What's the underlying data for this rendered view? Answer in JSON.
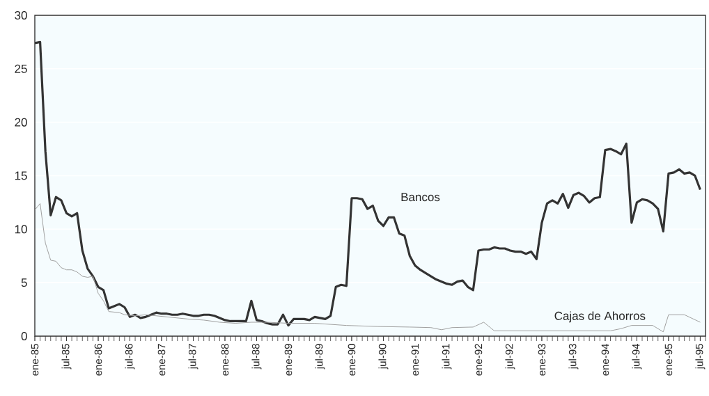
{
  "chart_data": {
    "type": "line",
    "xlim": [
      "1985-01",
      "1995-08"
    ],
    "ylim": [
      0,
      30
    ],
    "yticks": [
      0,
      5,
      10,
      15,
      20,
      25,
      30
    ],
    "xticks": [
      {
        "value": "1985-01",
        "label": "ene-85"
      },
      {
        "value": "1985-07",
        "label": "jul-85"
      },
      {
        "value": "1986-01",
        "label": "ene-86"
      },
      {
        "value": "1986-07",
        "label": "jul-86"
      },
      {
        "value": "1987-01",
        "label": "ene-87"
      },
      {
        "value": "1987-07",
        "label": "jul-87"
      },
      {
        "value": "1988-01",
        "label": "ene-88"
      },
      {
        "value": "1988-07",
        "label": "jul-88"
      },
      {
        "value": "1989-01",
        "label": "ene-89"
      },
      {
        "value": "1989-07",
        "label": "jul-89"
      },
      {
        "value": "1990-01",
        "label": "ene-90"
      },
      {
        "value": "1990-07",
        "label": "jul-90"
      },
      {
        "value": "1991-01",
        "label": "ene-91"
      },
      {
        "value": "1991-07",
        "label": "jul-91"
      },
      {
        "value": "1992-01",
        "label": "ene-92"
      },
      {
        "value": "1992-07",
        "label": "jul-92"
      },
      {
        "value": "1993-01",
        "label": "ene-93"
      },
      {
        "value": "1993-07",
        "label": "jul-93"
      },
      {
        "value": "1994-01",
        "label": "ene-94"
      },
      {
        "value": "1994-07",
        "label": "jul-94"
      },
      {
        "value": "1995-01",
        "label": "ene-95"
      },
      {
        "value": "1995-07",
        "label": "jul-95"
      }
    ],
    "grid": "y",
    "legend": false,
    "marker": "none",
    "series": [
      {
        "name": "Bancos",
        "color": "#333333",
        "x": [
          "1985-01",
          "1985-02",
          "1985-03",
          "1985-04",
          "1985-05",
          "1985-06",
          "1985-07",
          "1985-08",
          "1985-09",
          "1985-10",
          "1985-11",
          "1985-12",
          "1986-01",
          "1986-02",
          "1986-03",
          "1986-04",
          "1986-05",
          "1986-06",
          "1986-07",
          "1986-08",
          "1986-09",
          "1986-10",
          "1986-11",
          "1986-12",
          "1987-01",
          "1987-02",
          "1987-03",
          "1987-04",
          "1987-05",
          "1987-06",
          "1987-07",
          "1987-08",
          "1987-09",
          "1987-10",
          "1987-11",
          "1987-12",
          "1988-01",
          "1988-02",
          "1988-03",
          "1988-04",
          "1988-05",
          "1988-06",
          "1988-07",
          "1988-08",
          "1988-09",
          "1988-10",
          "1988-11",
          "1988-12",
          "1989-01",
          "1989-02",
          "1989-03",
          "1989-04",
          "1989-05",
          "1989-06",
          "1989-07",
          "1989-08",
          "1989-09",
          "1989-10",
          "1989-11",
          "1989-12",
          "1990-01",
          "1990-02",
          "1990-03",
          "1990-04",
          "1990-05",
          "1990-06",
          "1990-07",
          "1990-08",
          "1990-09",
          "1990-10",
          "1990-11",
          "1990-12",
          "1991-01",
          "1991-02",
          "1991-03",
          "1991-04",
          "1991-05",
          "1991-06",
          "1991-07",
          "1991-08",
          "1991-09",
          "1991-10",
          "1991-11",
          "1991-12",
          "1992-01",
          "1992-02",
          "1992-03",
          "1992-04",
          "1992-05",
          "1992-06",
          "1992-07",
          "1992-08",
          "1992-09",
          "1992-10",
          "1992-11",
          "1992-12",
          "1993-01",
          "1993-02",
          "1993-03",
          "1993-04",
          "1993-05",
          "1993-06",
          "1993-07",
          "1993-08",
          "1993-09",
          "1993-10",
          "1993-11",
          "1993-12",
          "1994-01",
          "1994-02",
          "1994-03",
          "1994-04",
          "1994-05",
          "1994-06",
          "1994-07",
          "1994-08",
          "1994-09",
          "1994-10",
          "1994-11",
          "1994-12",
          "1995-01",
          "1995-02",
          "1995-03",
          "1995-04",
          "1995-05",
          "1995-06",
          "1995-07"
        ],
        "values": [
          27.4,
          27.5,
          17.3,
          11.3,
          13.0,
          12.7,
          11.5,
          11.2,
          11.5,
          8.0,
          6.3,
          5.6,
          4.6,
          4.3,
          2.6,
          2.8,
          3.0,
          2.7,
          1.8,
          2.0,
          1.7,
          1.8,
          2.0,
          2.2,
          2.1,
          2.1,
          2.0,
          2.0,
          2.1,
          2.0,
          1.9,
          1.9,
          2.0,
          2.0,
          1.9,
          1.7,
          1.5,
          1.4,
          1.4,
          1.4,
          1.4,
          3.3,
          1.5,
          1.4,
          1.2,
          1.1,
          1.1,
          2.0,
          1.0,
          1.6,
          1.6,
          1.6,
          1.5,
          1.8,
          1.7,
          1.6,
          1.9,
          4.6,
          4.8,
          4.7,
          12.9,
          12.9,
          12.8,
          11.9,
          12.2,
          10.8,
          10.3,
          11.1,
          11.1,
          9.6,
          9.4,
          7.5,
          6.6,
          6.2,
          5.9,
          5.6,
          5.3,
          5.1,
          4.9,
          4.8,
          5.1,
          5.2,
          4.6,
          4.3,
          8.0,
          8.1,
          8.1,
          8.3,
          8.2,
          8.2,
          8.0,
          7.9,
          7.9,
          7.7,
          7.9,
          7.2,
          10.6,
          12.4,
          12.7,
          12.4,
          13.3,
          12.0,
          13.2,
          13.4,
          13.1,
          12.5,
          12.9,
          13.0,
          17.4,
          17.5,
          17.3,
          17.0,
          18.0,
          10.6,
          12.5,
          12.8,
          12.7,
          12.4,
          11.9,
          9.8,
          15.2,
          15.3,
          15.6,
          15.2,
          15.3,
          15.0,
          13.7
        ]
      },
      {
        "name": "Cajas de Ahorros",
        "color": "#a0a0a0",
        "x": [
          "1985-01",
          "1985-02",
          "1985-03",
          "1985-04",
          "1985-05",
          "1985-06",
          "1985-07",
          "1985-08",
          "1985-09",
          "1985-10",
          "1985-11",
          "1985-12",
          "1986-01",
          "1986-02",
          "1986-03",
          "1986-05",
          "1986-06",
          "1986-08",
          "1986-10",
          "1986-12",
          "1987-02",
          "1987-04",
          "1987-06",
          "1987-09",
          "1987-12",
          "1988-03",
          "1988-06",
          "1988-09",
          "1989-01",
          "1989-06",
          "1989-12",
          "1990-06",
          "1990-12",
          "1991-04",
          "1991-06",
          "1991-08",
          "1991-12",
          "1992-02",
          "1992-04",
          "1993-01",
          "1994-02",
          "1994-04",
          "1994-06",
          "1994-10",
          "1994-12",
          "1995-01",
          "1995-04",
          "1995-07"
        ],
        "values": [
          11.8,
          12.4,
          8.7,
          7.1,
          7.0,
          6.4,
          6.2,
          6.2,
          6.0,
          5.6,
          5.5,
          5.6,
          4.0,
          3.3,
          2.3,
          2.2,
          2.0,
          1.9,
          2.0,
          1.9,
          1.8,
          1.7,
          1.6,
          1.5,
          1.3,
          1.2,
          1.3,
          1.3,
          1.2,
          1.2,
          1.0,
          0.9,
          0.85,
          0.8,
          0.6,
          0.8,
          0.85,
          1.3,
          0.5,
          0.5,
          0.5,
          0.7,
          1.0,
          1.0,
          0.4,
          2.0,
          2.0,
          1.3
        ]
      }
    ]
  }
}
